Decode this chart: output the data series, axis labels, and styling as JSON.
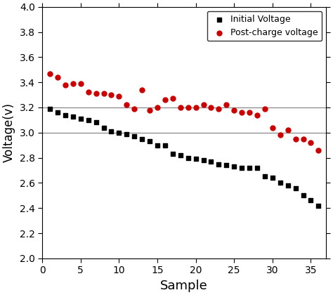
{
  "initial_voltage_x": [
    1,
    2,
    3,
    4,
    5,
    6,
    7,
    8,
    9,
    10,
    11,
    12,
    13,
    14,
    15,
    16,
    17,
    18,
    19,
    20,
    21,
    22,
    23,
    24,
    25,
    26,
    27,
    28,
    29,
    30,
    31,
    32,
    33,
    34,
    35,
    36
  ],
  "initial_voltage_y": [
    3.19,
    3.16,
    3.14,
    3.13,
    3.11,
    3.1,
    3.08,
    3.04,
    3.01,
    3.0,
    2.99,
    2.97,
    2.95,
    2.93,
    2.9,
    2.9,
    2.83,
    2.82,
    2.8,
    2.79,
    2.78,
    2.77,
    2.75,
    2.74,
    2.73,
    2.72,
    2.72,
    2.72,
    2.65,
    2.64,
    2.6,
    2.58,
    2.56,
    2.5,
    2.46,
    2.42
  ],
  "post_charge_x": [
    1,
    2,
    3,
    4,
    5,
    6,
    7,
    8,
    9,
    10,
    11,
    12,
    13,
    14,
    15,
    16,
    17,
    18,
    19,
    20,
    21,
    22,
    23,
    24,
    25,
    26,
    27,
    28,
    29,
    30,
    31,
    32,
    33,
    34,
    35,
    36
  ],
  "post_charge_y": [
    3.47,
    3.44,
    3.38,
    3.39,
    3.39,
    3.32,
    3.31,
    3.31,
    3.3,
    3.29,
    3.22,
    3.19,
    3.34,
    3.18,
    3.2,
    3.26,
    3.27,
    3.2,
    3.2,
    3.2,
    3.22,
    3.2,
    3.19,
    3.22,
    3.18,
    3.16,
    3.16,
    3.14,
    3.19,
    3.04,
    2.98,
    3.02,
    2.95,
    2.95,
    2.92,
    2.86
  ],
  "hline_values": [
    3.2,
    3.0
  ],
  "xlabel": "Sample",
  "ylabel": "Voltage(v)",
  "xlim": [
    0,
    37
  ],
  "ylim": [
    2.0,
    4.0
  ],
  "yticks": [
    2.0,
    2.2,
    2.4,
    2.6,
    2.8,
    3.0,
    3.2,
    3.4,
    3.6,
    3.8,
    4.0
  ],
  "xticks": [
    0,
    5,
    10,
    15,
    20,
    25,
    30,
    35
  ],
  "legend_labels": [
    "Initial Voltage",
    "Post-charge voltage"
  ],
  "initial_color": "#000000",
  "post_charge_color": "#cc0000",
  "hline_color": "#888888",
  "background_color": "#ffffff",
  "marker_size_square": 20,
  "marker_size_circle": 25
}
